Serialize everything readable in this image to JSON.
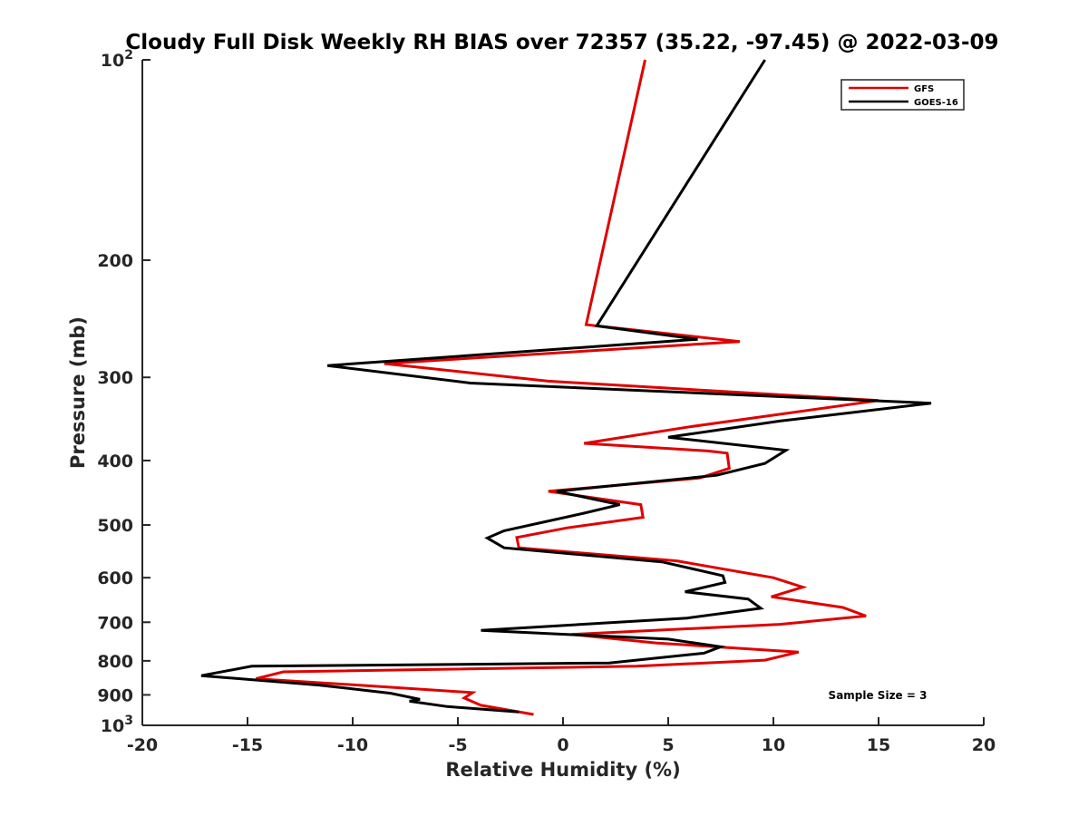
{
  "chart_data": {
    "type": "line",
    "title": "Cloudy Full Disk Weekly RH BIAS over 72357 (35.22, -97.45) @ 2022-03-09",
    "xlabel": "Relative Humidity (%)",
    "ylabel": "Pressure (mb)",
    "xlim": [
      -20,
      20
    ],
    "ylim": [
      100,
      1000
    ],
    "yscale": "log",
    "y_reversed": true,
    "x_ticks": [
      "-20",
      "-15",
      "-10",
      "-5",
      "0",
      "5",
      "10",
      "15",
      "20"
    ],
    "y_ticks": [
      {
        "value": 100,
        "base": "10",
        "exp": "2"
      },
      {
        "value": 200,
        "label": "200"
      },
      {
        "value": 300,
        "label": "300"
      },
      {
        "value": 400,
        "label": "400"
      },
      {
        "value": 500,
        "label": "500"
      },
      {
        "value": 600,
        "label": "600"
      },
      {
        "value": 700,
        "label": "700"
      },
      {
        "value": 800,
        "label": "800"
      },
      {
        "value": 900,
        "label": "900"
      },
      {
        "value": 1000,
        "base": "10",
        "exp": "3"
      }
    ],
    "legend_position": "top-right",
    "annotation": "Sample Size = 3",
    "series": [
      {
        "name": "GFS",
        "color": "#e00000",
        "points": [
          [
            3.9,
            100
          ],
          [
            1.1,
            250
          ],
          [
            8.4,
            265
          ],
          [
            -8.5,
            286
          ],
          [
            -0.7,
            304
          ],
          [
            15.0,
            325
          ],
          [
            6.0,
            356
          ],
          [
            1.0,
            377
          ],
          [
            6.9,
            387
          ],
          [
            7.8,
            390
          ],
          [
            7.9,
            411
          ],
          [
            6.5,
            425
          ],
          [
            -0.7,
            445
          ],
          [
            3.7,
            466
          ],
          [
            3.8,
            487
          ],
          [
            0.2,
            505
          ],
          [
            -2.2,
            522
          ],
          [
            -2.1,
            541
          ],
          [
            5.4,
            566
          ],
          [
            10.0,
            600
          ],
          [
            11.4,
            620
          ],
          [
            9.9,
            641
          ],
          [
            13.3,
            665
          ],
          [
            14.4,
            685
          ],
          [
            10.3,
            705
          ],
          [
            0.4,
            730
          ],
          [
            4.4,
            752
          ],
          [
            11.2,
            776
          ],
          [
            9.6,
            798
          ],
          [
            3.5,
            815
          ],
          [
            -13.3,
            831
          ],
          [
            -14.6,
            851
          ],
          [
            -9.5,
            871
          ],
          [
            -4.3,
            893
          ],
          [
            -4.7,
            910
          ],
          [
            -3.9,
            933
          ],
          [
            -1.4,
            963
          ]
        ]
      },
      {
        "name": "GOES-16",
        "color": "#000000",
        "points": [
          [
            9.6,
            100
          ],
          [
            1.6,
            251
          ],
          [
            6.4,
            263
          ],
          [
            -11.2,
            288
          ],
          [
            -4.4,
            306
          ],
          [
            17.5,
            328
          ],
          [
            10.3,
            349
          ],
          [
            5.0,
            369
          ],
          [
            10.6,
            386
          ],
          [
            9.6,
            404
          ],
          [
            7.3,
            421
          ],
          [
            -0.3,
            445
          ],
          [
            2.7,
            466
          ],
          [
            1.0,
            480
          ],
          [
            -2.8,
            510
          ],
          [
            -3.6,
            523
          ],
          [
            -2.8,
            541
          ],
          [
            4.7,
            568
          ],
          [
            7.6,
            596
          ],
          [
            7.7,
            610
          ],
          [
            5.8,
            630
          ],
          [
            8.8,
            646
          ],
          [
            9.4,
            667
          ],
          [
            5.9,
            690
          ],
          [
            -3.9,
            720
          ],
          [
            5.0,
            742
          ],
          [
            7.5,
            762
          ],
          [
            6.7,
            779
          ],
          [
            2.2,
            806
          ],
          [
            -14.8,
            815
          ],
          [
            -17.2,
            842
          ],
          [
            -11.6,
            870
          ],
          [
            -8.2,
            895
          ],
          [
            -6.8,
            914
          ],
          [
            -7.3,
            920
          ],
          [
            -5.5,
            937
          ],
          [
            -2.1,
            955
          ]
        ]
      }
    ]
  }
}
